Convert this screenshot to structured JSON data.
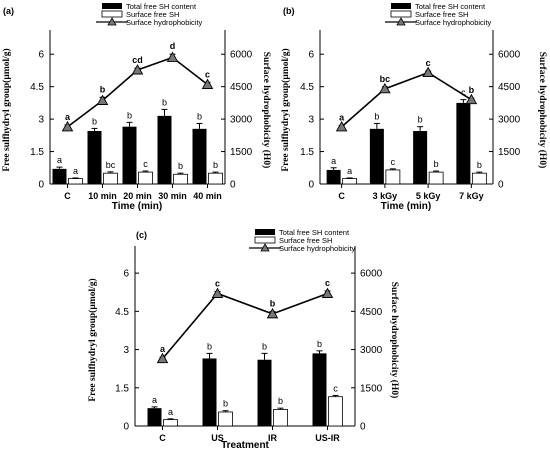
{
  "legend": {
    "total_label": "Total free SH content",
    "surface_label": "Surface free SH",
    "hydro_label": "Surface hydrophobicity"
  },
  "y_left_label": "Free sulfhydryl group(µmol/g)",
  "y_right_label": "Surface hydrophobicity (H0)",
  "chart_data": [
    {
      "panel": "(a)",
      "type": "bar",
      "categories": [
        "C",
        "10 min",
        "20 min",
        "30 min",
        "40 min"
      ],
      "xlabel": "Time (min)",
      "ylim_left": [
        0,
        6.75
      ],
      "ylim_right": [
        0,
        6750
      ],
      "left_ticks": [
        0,
        1.5,
        3,
        4.5,
        6
      ],
      "right_ticks": [
        0,
        1500,
        3000,
        4500,
        6000
      ],
      "series": [
        {
          "key": "total",
          "values": [
            0.7,
            2.45,
            2.65,
            3.15,
            2.55
          ],
          "errors": [
            0.08,
            0.12,
            0.2,
            0.3,
            0.25
          ],
          "letters": [
            "a",
            "b",
            "b",
            "b",
            "b"
          ]
        },
        {
          "key": "surface",
          "values": [
            0.25,
            0.5,
            0.55,
            0.45,
            0.5
          ],
          "errors": [
            0.03,
            0.06,
            0.05,
            0.05,
            0.05
          ],
          "letters": [
            "a",
            "bc",
            "c",
            "b",
            "b"
          ]
        },
        {
          "key": "hydrophobicity",
          "values": [
            2640,
            3860,
            5270,
            5850,
            4600
          ],
          "errors": [
            90,
            150,
            90,
            150,
            100
          ],
          "letters": [
            "a",
            "b",
            "cd",
            "d",
            "c"
          ]
        }
      ]
    },
    {
      "panel": "(b)",
      "type": "bar",
      "categories": [
        "C",
        "3 kGy",
        "5 kGy",
        "7 kGy"
      ],
      "xlabel": "Time (min)",
      "ylim_left": [
        0,
        6.75
      ],
      "ylim_right": [
        0,
        6750
      ],
      "left_ticks": [
        0,
        1.5,
        3,
        4.5,
        6
      ],
      "right_ticks": [
        0,
        1500,
        3000,
        4500,
        6000
      ],
      "series": [
        {
          "key": "total",
          "values": [
            0.65,
            2.55,
            2.45,
            3.75
          ],
          "errors": [
            0.1,
            0.25,
            0.2,
            0.15
          ],
          "letters": [
            "a",
            "b",
            "b",
            "c"
          ]
        },
        {
          "key": "surface",
          "values": [
            0.25,
            0.65,
            0.55,
            0.5
          ],
          "errors": [
            0.03,
            0.05,
            0.05,
            0.05
          ],
          "letters": [
            "a",
            "c",
            "b",
            "b"
          ]
        },
        {
          "key": "hydrophobicity",
          "values": [
            2640,
            4400,
            5150,
            3900
          ],
          "errors": [
            60,
            90,
            70,
            70
          ],
          "letters": [
            "a",
            "bc",
            "c",
            "b"
          ]
        }
      ]
    },
    {
      "panel": "(c)",
      "type": "bar",
      "categories": [
        "C",
        "US",
        "IR",
        "US-IR"
      ],
      "xlabel": "Treatment",
      "ylim_left": [
        0,
        6.75
      ],
      "ylim_right": [
        0,
        6750
      ],
      "left_ticks": [
        0,
        1.5,
        3,
        4.5,
        6
      ],
      "right_ticks": [
        0,
        1500,
        3000,
        4500,
        6000
      ],
      "series": [
        {
          "key": "total",
          "values": [
            0.7,
            2.65,
            2.6,
            2.85
          ],
          "errors": [
            0.05,
            0.2,
            0.25,
            0.1
          ],
          "letters": [
            "a",
            "b",
            "b",
            "b"
          ]
        },
        {
          "key": "surface",
          "values": [
            0.25,
            0.55,
            0.65,
            1.15
          ],
          "errors": [
            0.03,
            0.05,
            0.05,
            0.05
          ],
          "letters": [
            "a",
            "b",
            "b",
            "c"
          ]
        },
        {
          "key": "hydrophobicity",
          "values": [
            2640,
            5200,
            4400,
            5200
          ],
          "errors": [
            60,
            80,
            90,
            100
          ],
          "letters": [
            "a",
            "c",
            "b",
            "c"
          ]
        }
      ]
    }
  ]
}
